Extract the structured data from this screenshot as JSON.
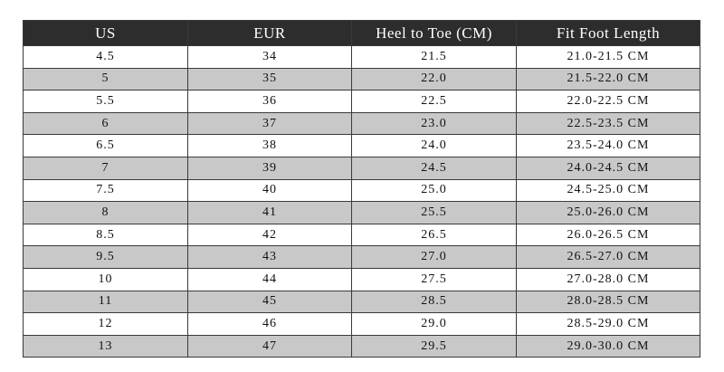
{
  "table": {
    "header": [
      "US",
      "EUR",
      "Heel to Toe (CM)",
      "Fit Foot Length"
    ],
    "rows": [
      [
        "4.5",
        "34",
        "21.5",
        "21.0-21.5 CM"
      ],
      [
        "5",
        "35",
        "22.0",
        "21.5-22.0 CM"
      ],
      [
        "5.5",
        "36",
        "22.5",
        "22.0-22.5 CM"
      ],
      [
        "6",
        "37",
        "23.0",
        "22.5-23.5 CM"
      ],
      [
        "6.5",
        "38",
        "24.0",
        "23.5-24.0 CM"
      ],
      [
        "7",
        "39",
        "24.5",
        "24.0-24.5 CM"
      ],
      [
        "7.5",
        "40",
        "25.0",
        "24.5-25.0 CM"
      ],
      [
        "8",
        "41",
        "25.5",
        "25.0-26.0 CM"
      ],
      [
        "8.5",
        "42",
        "26.5",
        "26.0-26.5 CM"
      ],
      [
        "9.5",
        "43",
        "27.0",
        "26.5-27.0 CM"
      ],
      [
        "10",
        "44",
        "27.5",
        "27.0-28.0 CM"
      ],
      [
        "11",
        "45",
        "28.5",
        "28.0-28.5 CM"
      ],
      [
        "12",
        "46",
        "29.0",
        "28.5-29.0 CM"
      ],
      [
        "13",
        "47",
        "29.5",
        "29.0-30.0 CM"
      ]
    ]
  }
}
